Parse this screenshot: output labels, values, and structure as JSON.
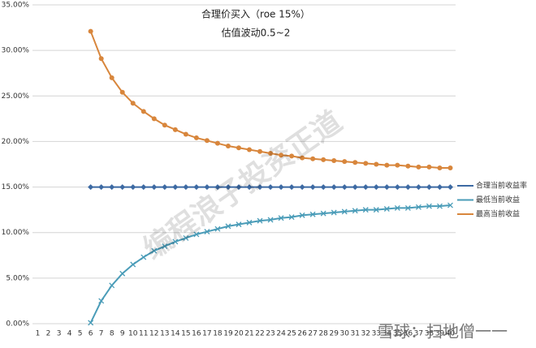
{
  "chart_data": {
    "type": "line",
    "title": "合理价买入（roe 15%）",
    "subtitle": "估值波动0.5~2",
    "categories": [
      "1",
      "2",
      "3",
      "4",
      "5",
      "6",
      "7",
      "8",
      "9",
      "10",
      "11",
      "12",
      "13",
      "14",
      "15",
      "16",
      "17",
      "18",
      "19",
      "20",
      "21",
      "22",
      "23",
      "24",
      "25",
      "26",
      "27",
      "28",
      "29",
      "30",
      "31",
      "32",
      "33",
      "34",
      "35",
      "36",
      "37",
      "38",
      "39",
      "40"
    ],
    "series": [
      {
        "name": "合理当前收益率",
        "color": "#3d6aa3",
        "marker": "diamond",
        "values": [
          null,
          null,
          null,
          null,
          null,
          15,
          15,
          15,
          15,
          15,
          15,
          15,
          15,
          15,
          15,
          15,
          15,
          15,
          15,
          15,
          15,
          15,
          15,
          15,
          15,
          15,
          15,
          15,
          15,
          15,
          15,
          15,
          15,
          15,
          15,
          15,
          15,
          15,
          15,
          15
        ]
      },
      {
        "name": "最低当前收益",
        "color": "#4a9cb8",
        "marker": "x",
        "values": [
          null,
          null,
          null,
          null,
          null,
          0.1,
          2.5,
          4.2,
          5.5,
          6.5,
          7.3,
          8.0,
          8.5,
          9.0,
          9.4,
          9.8,
          10.1,
          10.4,
          10.7,
          10.9,
          11.1,
          11.3,
          11.4,
          11.6,
          11.7,
          11.9,
          12.0,
          12.1,
          12.2,
          12.3,
          12.4,
          12.5,
          12.5,
          12.6,
          12.7,
          12.7,
          12.8,
          12.9,
          12.9,
          13.0
        ]
      },
      {
        "name": "最高当前收益",
        "color": "#d8863c",
        "marker": "circle",
        "values": [
          null,
          null,
          null,
          null,
          null,
          32.1,
          29.1,
          27.0,
          25.4,
          24.2,
          23.3,
          22.5,
          21.8,
          21.3,
          20.8,
          20.4,
          20.1,
          19.8,
          19.5,
          19.3,
          19.1,
          18.9,
          18.7,
          18.5,
          18.4,
          18.2,
          18.1,
          18.0,
          17.9,
          17.8,
          17.7,
          17.6,
          17.5,
          17.4,
          17.4,
          17.3,
          17.2,
          17.2,
          17.1,
          17.1
        ]
      }
    ],
    "ylim": [
      0,
      35
    ],
    "yticks": [
      {
        "value": 0,
        "label": "0.00%"
      },
      {
        "value": 5,
        "label": "5.00%"
      },
      {
        "value": 10,
        "label": "10.00%"
      },
      {
        "value": 15,
        "label": "15.00%"
      },
      {
        "value": 20,
        "label": "20.00%"
      },
      {
        "value": 25,
        "label": "25.00%"
      },
      {
        "value": 30,
        "label": "30.00%"
      },
      {
        "value": 35,
        "label": "35.00%"
      }
    ],
    "grid": true,
    "legend": "right",
    "watermarks": [
      "编程浪子投资正道",
      "雪球：扫地僧一一"
    ]
  }
}
